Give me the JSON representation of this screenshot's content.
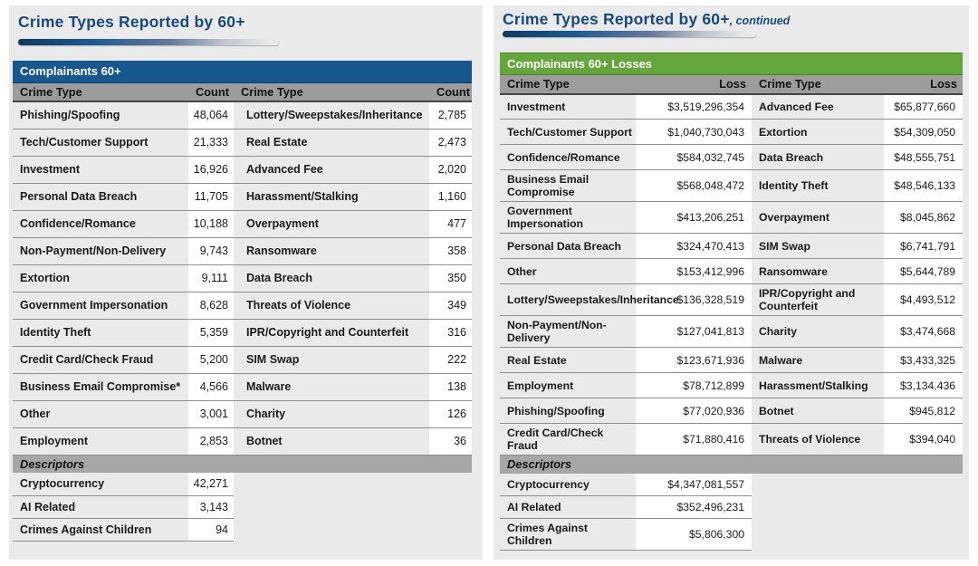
{
  "colors": {
    "accent_blue": "#16578e",
    "accent_green": "#64a53c",
    "title_navy": "#17497d",
    "header_gray": "#9c9c9c"
  },
  "left_panel": {
    "title": "Crime Types Reported by 60+",
    "band_label": "Complainants 60+",
    "columns": {
      "c1": "Crime Type",
      "c2": "Count",
      "c3": "Crime Type",
      "c4": "Count"
    },
    "rows": [
      [
        "Phishing/Spoofing",
        "48,064",
        "Lottery/Sweepstakes/Inheritance",
        "2,785"
      ],
      [
        "Tech/Customer Support",
        "21,333",
        "Real Estate",
        "2,473"
      ],
      [
        "Investment",
        "16,926",
        "Advanced Fee",
        "2,020"
      ],
      [
        "Personal Data Breach",
        "11,705",
        "Harassment/Stalking",
        "1,160"
      ],
      [
        "Confidence/Romance",
        "10,188",
        "Overpayment",
        "477"
      ],
      [
        "Non-Payment/Non-Delivery",
        "9,743",
        "Ransomware",
        "358"
      ],
      [
        "Extortion",
        "9,111",
        "Data Breach",
        "350"
      ],
      [
        "Government Impersonation",
        "8,628",
        "Threats of Violence",
        "349"
      ],
      [
        "Identity Theft",
        "5,359",
        "IPR/Copyright and Counterfeit",
        "316"
      ],
      [
        "Credit Card/Check Fraud",
        "5,200",
        "SIM Swap",
        "222"
      ],
      [
        "Business Email Compromise*",
        "4,566",
        "Malware",
        "138"
      ],
      [
        "Other",
        "3,001",
        "Charity",
        "126"
      ],
      [
        "Employment",
        "2,853",
        "Botnet",
        "36"
      ]
    ],
    "descriptors_label": "Descriptors",
    "descriptor_rows": [
      [
        "Cryptocurrency",
        "42,271"
      ],
      [
        "AI Related",
        "3,143"
      ],
      [
        "Crimes Against Children",
        "94"
      ]
    ]
  },
  "right_panel": {
    "title": "Crime Types Reported by 60+",
    "title_suffix": ", continued",
    "band_label": "Complainants 60+ Losses",
    "columns": {
      "c1": "Crime Type",
      "c2": "Loss",
      "c3": "Crime Type",
      "c4": "Loss"
    },
    "rows": [
      [
        "Investment",
        "$3,519,296,354",
        "Advanced Fee",
        "$65,877,660"
      ],
      [
        "Tech/Customer Support",
        "$1,040,730,043",
        "Extortion",
        "$54,309,050"
      ],
      [
        "Confidence/Romance",
        "$584,032,745",
        "Data Breach",
        "$48,555,751"
      ],
      [
        "Business Email Compromise",
        "$568,048,472",
        "Identity Theft",
        "$48,546,133"
      ],
      [
        "Government Impersonation",
        "$413,206,251",
        "Overpayment",
        "$8,045,862"
      ],
      [
        "Personal Data Breach",
        "$324,470,413",
        "SIM Swap",
        "$6,741,791"
      ],
      [
        "Other",
        "$153,412,996",
        "Ransomware",
        "$5,644,789"
      ],
      [
        "Lottery/Sweepstakes/Inheritance",
        "$136,328,519",
        "IPR/Copyright and Counterfeit",
        "$4,493,512"
      ],
      [
        "Non-Payment/Non-Delivery",
        "$127,041,813",
        "Charity",
        "$3,474,668"
      ],
      [
        "Real Estate",
        "$123,671,936",
        "Malware",
        "$3,433,325"
      ],
      [
        "Employment",
        "$78,712,899",
        "Harassment/Stalking",
        "$3,134,436"
      ],
      [
        "Phishing/Spoofing",
        "$77,020,936",
        "Botnet",
        "$945,812"
      ],
      [
        "Credit Card/Check Fraud",
        "$71,880,416",
        "Threats of Violence",
        "$394,040"
      ]
    ],
    "descriptors_label": "Descriptors",
    "descriptor_rows": [
      [
        "Cryptocurrency",
        "$4,347,081,557"
      ],
      [
        "AI Related",
        "$352,496,231"
      ],
      [
        "Crimes Against Children",
        "$5,806,300"
      ]
    ]
  }
}
